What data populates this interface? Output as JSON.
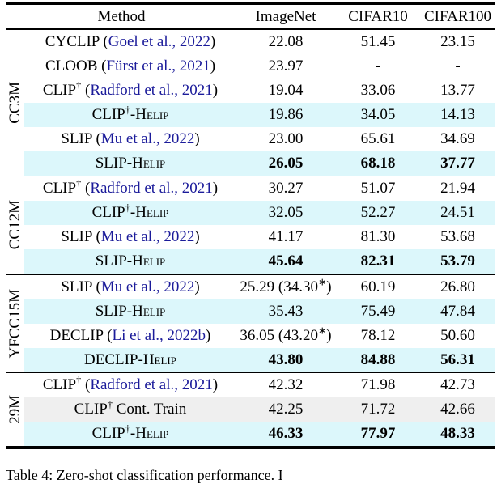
{
  "colors": {
    "highlight_cyan": "#dcf7fb",
    "highlight_gray": "#efefef",
    "citation_blue": "#1b1b9a",
    "rule_black": "#000000"
  },
  "table": {
    "headers": [
      "Method",
      "ImageNet",
      "CIFAR10",
      "CIFAR100"
    ],
    "groups": [
      {
        "label": "CC3M",
        "rows": [
          {
            "method": [
              {
                "t": "CYCLIP"
              }
            ],
            "cite": "Goel et al., 2022",
            "values": [
              "22.08",
              "51.45",
              "23.15"
            ],
            "bg": "plain",
            "bold": false
          },
          {
            "method": [
              {
                "t": "CLOOB"
              }
            ],
            "cite": "Fürst et al., 2021",
            "values": [
              "23.97",
              "-",
              "-"
            ],
            "bg": "plain",
            "bold": false
          },
          {
            "method": [
              {
                "t": "CLIP"
              },
              {
                "t": "†",
                "sup": true
              }
            ],
            "cite": "Radford et al., 2021",
            "values": [
              "19.04",
              "33.06",
              "13.77"
            ],
            "bg": "plain",
            "bold": false
          },
          {
            "method": [
              {
                "t": "CLIP"
              },
              {
                "t": "†",
                "sup": true
              },
              {
                "t": "-"
              },
              {
                "t": "Helip",
                "sc": true
              }
            ],
            "cite": null,
            "values": [
              "19.86",
              "34.05",
              "14.13"
            ],
            "bg": "cyan",
            "bold": false
          },
          {
            "method": [
              {
                "t": "SLIP"
              }
            ],
            "cite": "Mu et al., 2022",
            "values": [
              "23.00",
              "65.61",
              "34.69"
            ],
            "bg": "plain",
            "bold": false
          },
          {
            "method": [
              {
                "t": "SLIP-"
              },
              {
                "t": "Helip",
                "sc": true
              }
            ],
            "cite": null,
            "values": [
              "26.05",
              "68.18",
              "37.77"
            ],
            "bg": "cyan",
            "bold": true
          }
        ]
      },
      {
        "label": "CC12M",
        "rows": [
          {
            "method": [
              {
                "t": "CLIP"
              },
              {
                "t": "†",
                "sup": true
              }
            ],
            "cite": "Radford et al., 2021",
            "values": [
              "30.27",
              "51.07",
              "21.94"
            ],
            "bg": "plain",
            "bold": false
          },
          {
            "method": [
              {
                "t": "CLIP"
              },
              {
                "t": "†",
                "sup": true
              },
              {
                "t": "-"
              },
              {
                "t": "Helip",
                "sc": true
              }
            ],
            "cite": null,
            "values": [
              "32.05",
              "52.27",
              "24.51"
            ],
            "bg": "cyan",
            "bold": false
          },
          {
            "method": [
              {
                "t": "SLIP"
              }
            ],
            "cite": "Mu et al., 2022",
            "values": [
              "41.17",
              "81.30",
              "53.68"
            ],
            "bg": "plain",
            "bold": false
          },
          {
            "method": [
              {
                "t": "SLIP-"
              },
              {
                "t": "Helip",
                "sc": true
              }
            ],
            "cite": null,
            "values": [
              "45.64",
              "82.31",
              "53.79"
            ],
            "bg": "cyan",
            "bold": true
          }
        ]
      },
      {
        "label": "YFCC15M",
        "rows": [
          {
            "method": [
              {
                "t": "SLIP"
              }
            ],
            "cite": "Mu et al., 2022",
            "values": [
              "25.29 (34.30*)",
              "60.19",
              "26.80"
            ],
            "bg": "plain",
            "bold": false
          },
          {
            "method": [
              {
                "t": "SLIP-"
              },
              {
                "t": "Helip",
                "sc": true
              }
            ],
            "cite": null,
            "values": [
              "35.43",
              "75.49",
              "47.84"
            ],
            "bg": "cyan",
            "bold": false
          },
          {
            "method": [
              {
                "t": "DECLIP"
              }
            ],
            "cite": "Li et al., 2022b",
            "values": [
              "36.05 (43.20*)",
              "78.12",
              "50.60"
            ],
            "bg": "plain",
            "bold": false
          },
          {
            "method": [
              {
                "t": "DECLIP-"
              },
              {
                "t": "Helip",
                "sc": true
              }
            ],
            "cite": null,
            "values": [
              "43.80",
              "84.88",
              "56.31"
            ],
            "bg": "cyan",
            "bold": true
          }
        ]
      },
      {
        "label": "29M",
        "rows": [
          {
            "method": [
              {
                "t": "CLIP"
              },
              {
                "t": "†",
                "sup": true
              }
            ],
            "cite": "Radford et al., 2021",
            "values": [
              "42.32",
              "71.98",
              "42.73"
            ],
            "bg": "plain",
            "bold": false
          },
          {
            "method": [
              {
                "t": "CLIP"
              },
              {
                "t": "†",
                "sup": true
              },
              {
                "t": " Cont. Train"
              }
            ],
            "cite": null,
            "values": [
              "42.25",
              "71.72",
              "42.66"
            ],
            "bg": "gray",
            "bold": false
          },
          {
            "method": [
              {
                "t": "CLIP"
              },
              {
                "t": "†",
                "sup": true
              },
              {
                "t": "-"
              },
              {
                "t": "Helip",
                "sc": true
              }
            ],
            "cite": null,
            "values": [
              "46.33",
              "77.97",
              "48.33"
            ],
            "bg": "cyan",
            "bold": true
          }
        ]
      }
    ]
  },
  "caption": "Table 4: Zero-shot classification performance. I"
}
